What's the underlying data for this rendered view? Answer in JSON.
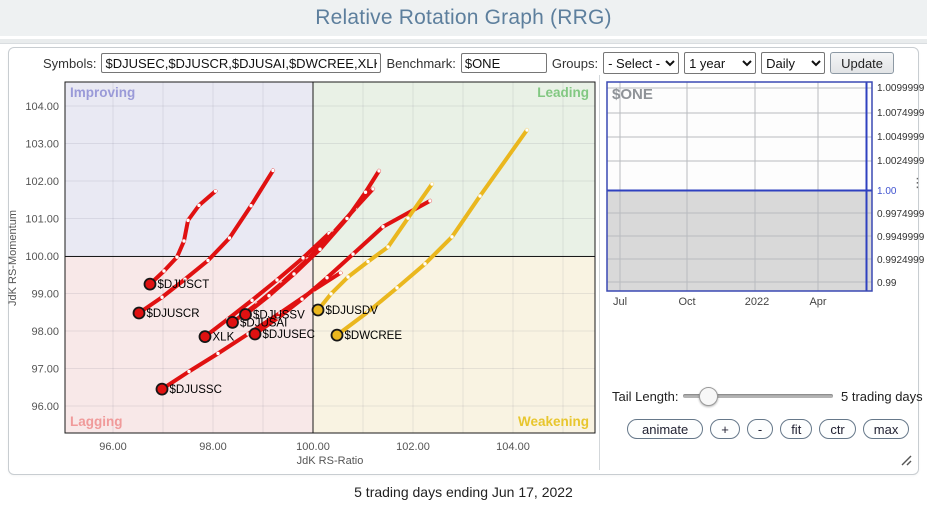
{
  "header": {
    "title": "Relative Rotation Graph (RRG)"
  },
  "toolbar": {
    "symbols_label": "Symbols:",
    "symbols_value": "$DJUSEC,$DJUSCR,$DJUSAI,$DWCREE,XLK,$D",
    "benchmark_label": "Benchmark:",
    "benchmark_value": "$ONE",
    "groups_label": "Groups:",
    "groups_selected": "- Select -",
    "period_selected": "1 year",
    "frequency_selected": "Daily",
    "update_label": "Update"
  },
  "chart_data": {
    "type": "scatter",
    "title": "Relative Rotation Graph",
    "xlabel": "JdK RS-Ratio",
    "ylabel": "JdK RS-Momentum",
    "xlim": [
      95.04,
      105.64
    ],
    "ylim": [
      95.28,
      104.64
    ],
    "x_ticks": [
      "96.00",
      "98.00",
      "100.00",
      "102.00",
      "104.00"
    ],
    "y_ticks": [
      "104.00",
      "103.00",
      "102.00",
      "101.00",
      "100.00",
      "99.00",
      "98.00",
      "97.00",
      "96.00"
    ],
    "grid": "on",
    "quadrants": [
      {
        "name": "Improving",
        "label_color": "#9a9ad8",
        "bg": "#e9e9f3"
      },
      {
        "name": "Leading",
        "label_color": "#82c882",
        "bg": "#e9f1e6"
      },
      {
        "name": "Lagging",
        "label_color": "#f09a9a",
        "bg": "#f8e8e8"
      },
      {
        "name": "Weakening",
        "label_color": "#e8c62e",
        "bg": "#f9f3e2"
      }
    ],
    "series": [
      {
        "name": "$DJUSCT",
        "color": "#e01111",
        "points": [
          [
            96.74,
            99.25
          ],
          [
            97.02,
            99.6
          ],
          [
            97.28,
            99.97
          ],
          [
            97.42,
            100.4
          ],
          [
            97.5,
            100.95
          ],
          [
            97.72,
            101.35
          ],
          [
            98.05,
            101.73
          ]
        ]
      },
      {
        "name": "$DJUSCR",
        "color": "#e01111",
        "points": [
          [
            96.52,
            98.48
          ],
          [
            96.98,
            98.9
          ],
          [
            97.44,
            99.38
          ],
          [
            97.9,
            99.88
          ],
          [
            98.33,
            100.48
          ],
          [
            98.76,
            101.34
          ],
          [
            99.2,
            102.28
          ]
        ]
      },
      {
        "name": "$DJUSSC",
        "color": "#e01111",
        "points": [
          [
            96.98,
            96.45
          ],
          [
            97.52,
            96.92
          ],
          [
            98.1,
            97.4
          ],
          [
            98.7,
            97.92
          ],
          [
            99.34,
            98.48
          ],
          [
            100.0,
            99.08
          ],
          [
            100.55,
            99.55
          ]
        ]
      },
      {
        "name": "XLK",
        "color": "#e01111",
        "points": [
          [
            97.84,
            97.85
          ],
          [
            98.3,
            98.32
          ],
          [
            98.78,
            98.82
          ],
          [
            99.28,
            99.36
          ],
          [
            99.8,
            99.95
          ],
          [
            100.32,
            100.6
          ]
        ]
      },
      {
        "name": "$DJUSAI",
        "color": "#e01111",
        "points": [
          [
            98.39,
            98.23
          ],
          [
            98.88,
            98.72
          ],
          [
            99.38,
            99.28
          ],
          [
            99.9,
            99.92
          ],
          [
            100.42,
            100.64
          ],
          [
            100.85,
            101.28
          ],
          [
            101.2,
            101.79
          ]
        ]
      },
      {
        "name": "$DJUSSV",
        "color": "#e01111",
        "points": [
          [
            98.65,
            98.44
          ],
          [
            99.12,
            98.94
          ],
          [
            99.62,
            99.52
          ],
          [
            100.14,
            100.18
          ],
          [
            100.68,
            101.0
          ],
          [
            101.05,
            101.7
          ],
          [
            101.32,
            102.27
          ]
        ]
      },
      {
        "name": "$DJUSEC",
        "color": "#e01111",
        "points": [
          [
            98.84,
            97.92
          ],
          [
            99.3,
            98.35
          ],
          [
            99.78,
            98.85
          ],
          [
            100.28,
            99.42
          ],
          [
            100.8,
            100.05
          ],
          [
            101.4,
            100.78
          ],
          [
            102.34,
            101.47
          ]
        ]
      },
      {
        "name": "$DJUSDV",
        "color": "#eab71e",
        "points": [
          [
            100.1,
            98.56
          ],
          [
            100.36,
            98.99
          ],
          [
            100.7,
            99.44
          ],
          [
            101.1,
            99.85
          ],
          [
            101.5,
            100.24
          ],
          [
            101.9,
            101.01
          ],
          [
            102.38,
            101.92
          ]
        ]
      },
      {
        "name": "$DWCREE",
        "color": "#eab71e",
        "points": [
          [
            100.48,
            97.89
          ],
          [
            101.1,
            98.51
          ],
          [
            101.68,
            99.15
          ],
          [
            102.24,
            99.79
          ],
          [
            102.78,
            100.51
          ],
          [
            103.34,
            101.6
          ],
          [
            104.28,
            103.36
          ]
        ]
      }
    ]
  },
  "benchmark_panel": {
    "symbol": "$ONE",
    "y_ticks": [
      "1.0099999",
      "1.0074999",
      "1.0049999",
      "1.0024999",
      "1.00",
      "0.9974999",
      "0.9949999",
      "0.9924999",
      "0.99"
    ],
    "highlight_tick": "1.00",
    "highlight_color": "#4053d0",
    "x_ticks": [
      "Jul",
      "Oct",
      "2022",
      "Apr"
    ]
  },
  "controls": {
    "tail_length_label": "Tail Length:",
    "tail_length_value": "5 trading days",
    "buttons": [
      {
        "label": "animate",
        "name": "animate-button"
      },
      {
        "label": "+",
        "name": "zoom-in-button"
      },
      {
        "label": "-",
        "name": "zoom-out-button"
      },
      {
        "label": "fit",
        "name": "fit-button"
      },
      {
        "label": "ctr",
        "name": "ctr-button"
      },
      {
        "label": "max",
        "name": "max-button"
      }
    ]
  },
  "footer": {
    "caption": "5 trading days ending Jun 17, 2022"
  }
}
